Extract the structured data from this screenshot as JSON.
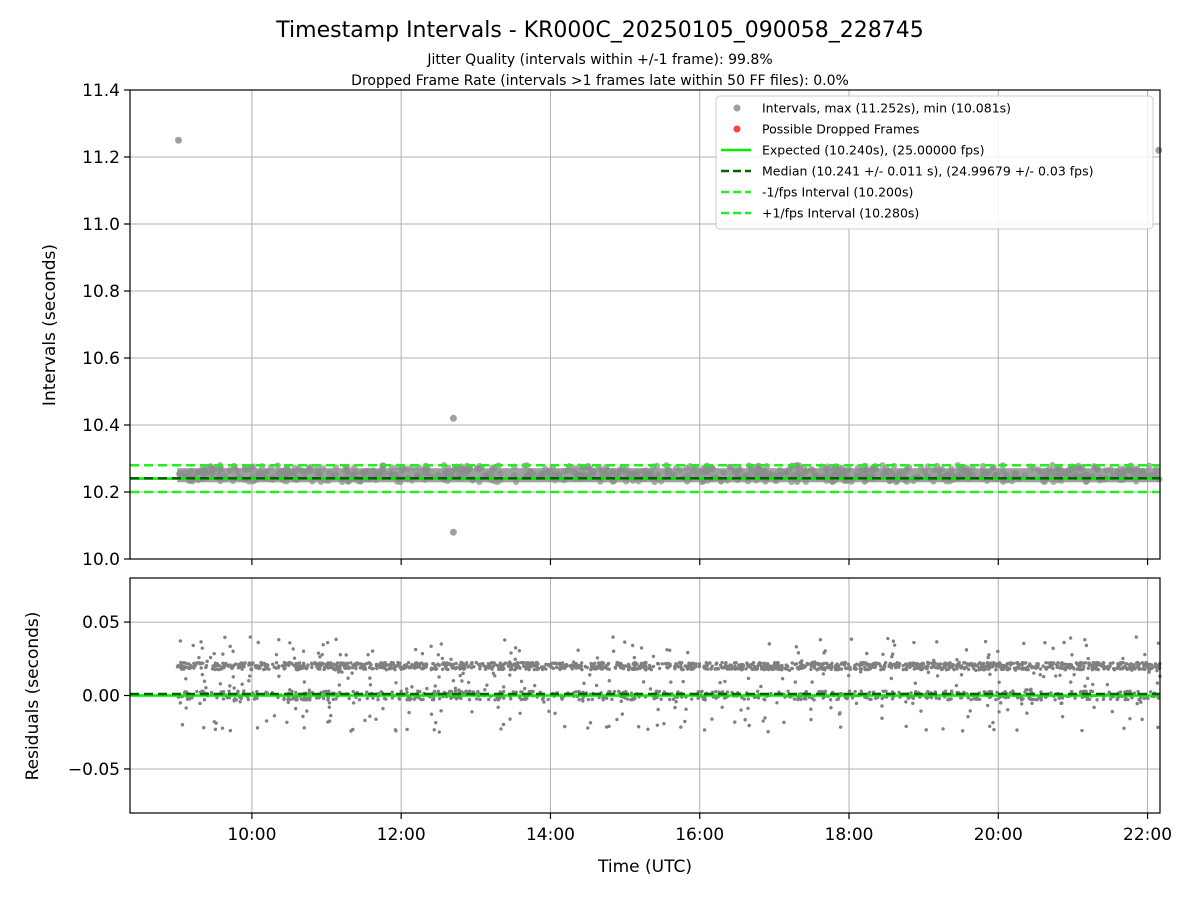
{
  "figure": {
    "title": "Timestamp Intervals - KR000C_20250105_090058_228745",
    "subtitle_line1": "Jitter Quality (intervals within +/-1 frame): 99.8%",
    "subtitle_line2": "Dropped Frame Rate (intervals >1 frames late within 50 FF files): 0.0%"
  },
  "colors": {
    "points": "#808080",
    "dropped": "#ff4040",
    "expected": "#00ee00",
    "median": "#006400",
    "interval_lines": "#22ee22",
    "grid": "#b0b0b0"
  },
  "chart_data": [
    {
      "type": "scatter",
      "panel": "intervals",
      "xlabel": "",
      "ylabel": "Intervals (seconds)",
      "xlim": [
        "08:22",
        "22:10"
      ],
      "ylim": [
        10.0,
        11.4
      ],
      "yticks": [
        "10.0",
        "10.2",
        "10.4",
        "10.6",
        "10.8",
        "11.0",
        "11.2",
        "11.4"
      ],
      "grid": true,
      "legend_position": "top-right",
      "legend": [
        {
          "label": "Intervals, max (11.252s), min (10.081s)",
          "kind": "marker",
          "color": "#a0a0a0"
        },
        {
          "label": "Possible Dropped Frames",
          "kind": "marker",
          "color": "#ff4040"
        },
        {
          "label": "Expected (10.240s), (25.00000 fps)",
          "kind": "solid",
          "color": "#00ee00"
        },
        {
          "label": "Median (10.241 +/- 0.011 s), (24.99679 +/- 0.03 fps)",
          "kind": "dashed",
          "color": "#006400"
        },
        {
          "label": "-1/fps Interval (10.200s)",
          "kind": "dashed",
          "color": "#22ee22"
        },
        {
          "label": "+1/fps Interval (10.280s)",
          "kind": "dashed",
          "color": "#22ee22"
        }
      ],
      "series": [
        {
          "name": "Intervals",
          "band_start": "09:00",
          "band_end": "22:10",
          "band_min": 10.22,
          "band_max": 10.28,
          "outliers": [
            {
              "x": "09:01",
              "y": 11.25
            },
            {
              "x": "12:42",
              "y": 10.42
            },
            {
              "x": "12:42",
              "y": 10.08
            },
            {
              "x": "22:09",
              "y": 11.22
            }
          ]
        },
        {
          "name": "Possible Dropped Frames",
          "points": []
        }
      ],
      "hlines": [
        {
          "name": "Expected",
          "y": 10.24,
          "style": "solid"
        },
        {
          "name": "Median",
          "y": 10.241,
          "style": "dashed"
        },
        {
          "name": "-1/fps Interval",
          "y": 10.2,
          "style": "dashed"
        },
        {
          "name": "+1/fps Interval",
          "y": 10.28,
          "style": "dashed"
        }
      ]
    },
    {
      "type": "scatter",
      "panel": "residuals",
      "xlabel": "Time (UTC)",
      "ylabel": "Residuals (seconds)",
      "xlim": [
        "08:22",
        "22:10"
      ],
      "xticks": [
        "10:00",
        "12:00",
        "14:00",
        "16:00",
        "18:00",
        "20:00",
        "22:00"
      ],
      "ylim": [
        -0.08,
        0.08
      ],
      "yticks": [
        "0.05",
        "0.00",
        "−0.05"
      ],
      "grid": true,
      "series": [
        {
          "name": "Residuals",
          "x_start": "09:00",
          "x_end": "22:10",
          "upper_cluster": 0.02,
          "lower_cluster": 0.0,
          "spread_min": -0.025,
          "spread_max": 0.04
        }
      ],
      "hlines": [
        {
          "name": "Expected",
          "y": 0.0,
          "style": "solid"
        },
        {
          "name": "Median",
          "y": 0.001,
          "style": "dashed"
        }
      ]
    }
  ]
}
